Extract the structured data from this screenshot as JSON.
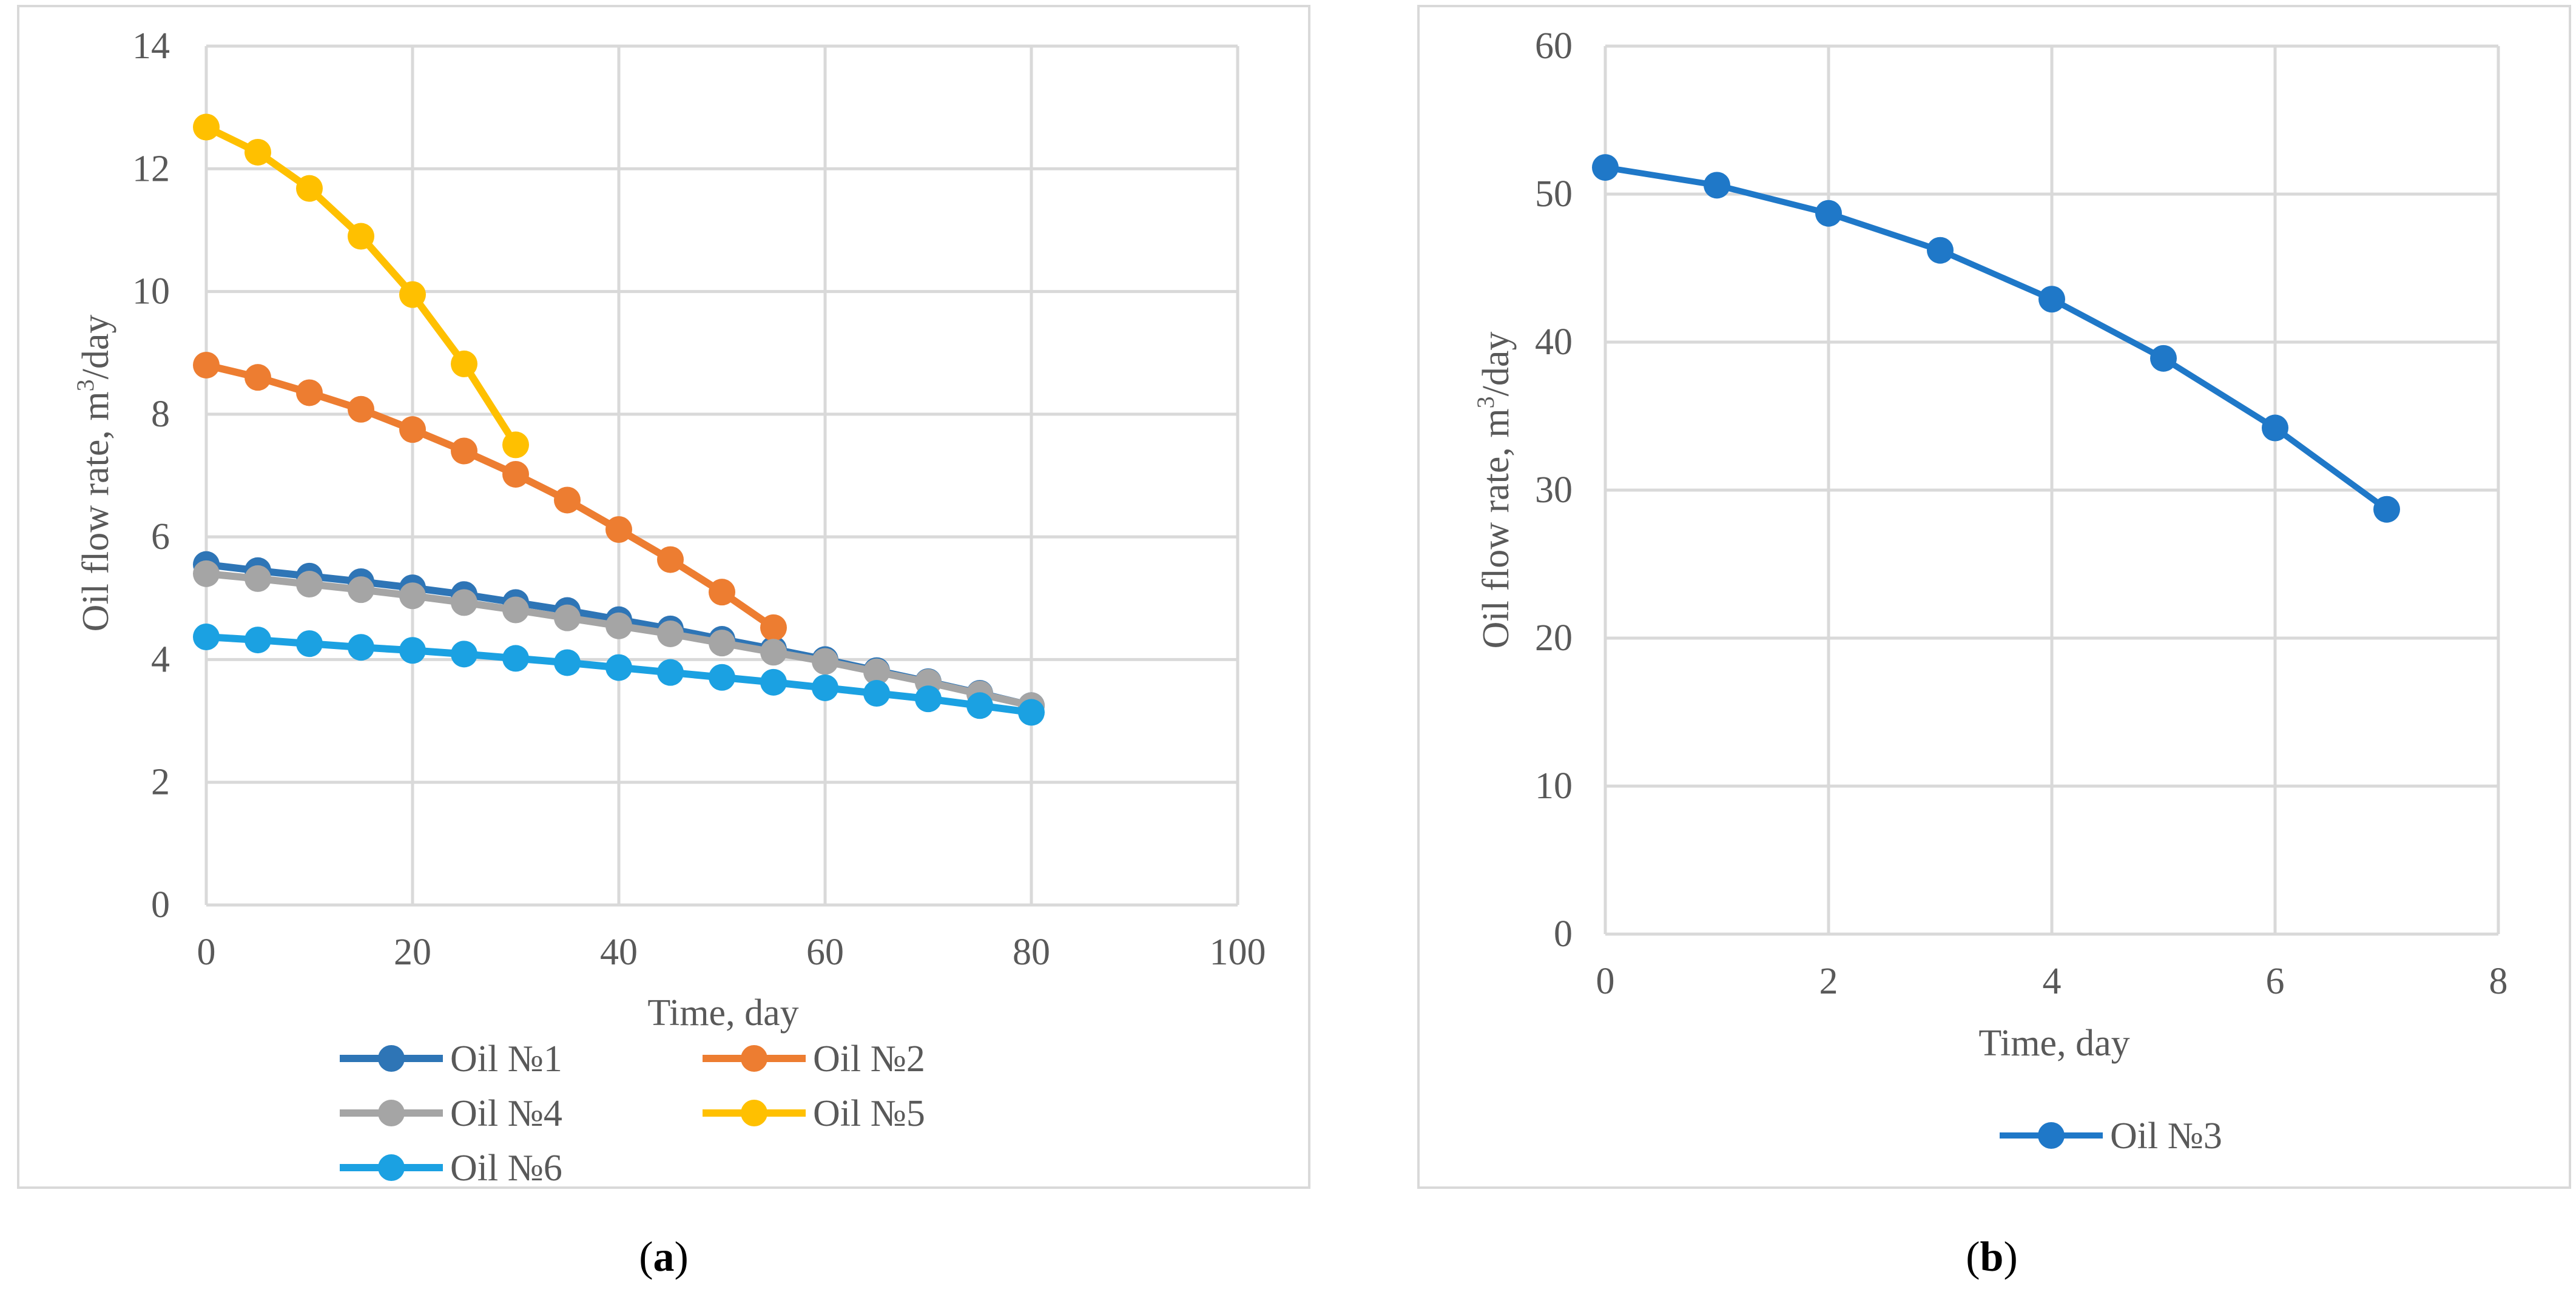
{
  "chart_data": [
    {
      "type": "line",
      "panel_label": "a",
      "title": "",
      "xlabel": "Time, day",
      "ylabel_main": "Oil flow rate, m",
      "ylabel_sup": "3",
      "ylabel_tail": "/day",
      "xlim": [
        0,
        100
      ],
      "ylim": [
        0,
        14
      ],
      "xticks": [
        0,
        20,
        40,
        60,
        80,
        100
      ],
      "yticks": [
        0,
        2,
        4,
        6,
        8,
        10,
        12,
        14
      ],
      "grid": true,
      "legend_placement": "bottom",
      "series": [
        {
          "name": "Oil №1",
          "color": "#2e75b6",
          "x": [
            0,
            5,
            10,
            15,
            20,
            25,
            30,
            35,
            40,
            45,
            50,
            55,
            60,
            65,
            70,
            75,
            80
          ],
          "y": [
            5.55,
            5.45,
            5.36,
            5.27,
            5.17,
            5.06,
            4.93,
            4.8,
            4.65,
            4.5,
            4.33,
            4.17,
            4.0,
            3.82,
            3.64,
            3.45,
            3.25
          ]
        },
        {
          "name": "Oil №2",
          "color": "#ed7d31",
          "x": [
            0,
            5,
            10,
            15,
            20,
            25,
            30,
            35,
            40,
            45,
            50,
            55
          ],
          "y": [
            8.8,
            8.6,
            8.35,
            8.08,
            7.75,
            7.4,
            7.02,
            6.6,
            6.12,
            5.63,
            5.1,
            4.52
          ]
        },
        {
          "name": "Oil №4",
          "color": "#a5a5a5",
          "x": [
            0,
            5,
            10,
            15,
            20,
            25,
            30,
            35,
            40,
            45,
            50,
            55,
            60,
            65,
            70,
            75,
            80
          ],
          "y": [
            5.4,
            5.32,
            5.23,
            5.14,
            5.04,
            4.93,
            4.81,
            4.68,
            4.55,
            4.42,
            4.27,
            4.12,
            3.97,
            3.8,
            3.63,
            3.44,
            3.25
          ]
        },
        {
          "name": "Oil №5",
          "color": "#ffc000",
          "x": [
            0,
            5,
            10,
            15,
            20,
            25,
            30
          ],
          "y": [
            12.68,
            12.27,
            11.68,
            10.9,
            9.95,
            8.82,
            7.5
          ]
        },
        {
          "name": "Oil №6",
          "color": "#1ba1e2",
          "x": [
            0,
            5,
            10,
            15,
            20,
            25,
            30,
            35,
            40,
            45,
            50,
            55,
            60,
            65,
            70,
            75,
            80
          ],
          "y": [
            4.37,
            4.32,
            4.26,
            4.2,
            4.15,
            4.09,
            4.02,
            3.95,
            3.87,
            3.79,
            3.71,
            3.63,
            3.54,
            3.45,
            3.36,
            3.25,
            3.14
          ]
        }
      ]
    },
    {
      "type": "line",
      "panel_label": "b",
      "title": "",
      "xlabel": "Time, day",
      "ylabel_main": "Oil flow rate, m",
      "ylabel_sup": "3",
      "ylabel_tail": "/day",
      "xlim": [
        0,
        8
      ],
      "ylim": [
        0,
        60
      ],
      "xticks": [
        0,
        2,
        4,
        6,
        8
      ],
      "yticks": [
        0,
        10,
        20,
        30,
        40,
        50,
        60
      ],
      "grid": true,
      "legend_placement": "bottom",
      "series": [
        {
          "name": "Oil №3",
          "color": "#1f78c8",
          "x": [
            0,
            1,
            2,
            3,
            4,
            5,
            6,
            7
          ],
          "y": [
            51.8,
            50.6,
            48.7,
            46.2,
            42.9,
            38.9,
            34.2,
            28.7
          ]
        }
      ]
    }
  ]
}
